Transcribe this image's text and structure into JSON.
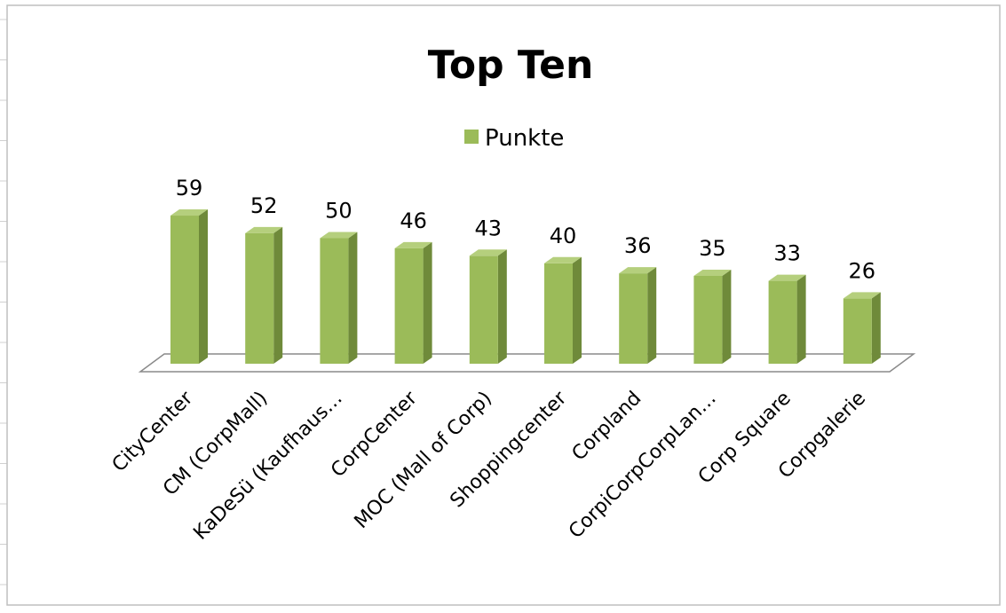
{
  "chart_data": {
    "type": "bar",
    "title": "Top Ten",
    "legend": {
      "position": "top",
      "entries": [
        {
          "name": "Punkte",
          "color": "#9bbb59"
        }
      ]
    },
    "categories": [
      "CityCenter",
      "CM (CorpMall)",
      "KaDeSü (Kaufhaus…",
      "CorpCenter",
      "MOC (Mall of Corp)",
      "Shoppingcenter",
      "Corpland",
      "CorpiCorpCorpLan…",
      "Corp Square",
      "Corpgalerie"
    ],
    "series": [
      {
        "name": "Punkte",
        "values": [
          59,
          52,
          50,
          46,
          43,
          40,
          36,
          35,
          33,
          26
        ]
      }
    ],
    "data_labels": true,
    "three_d": true,
    "grid": false,
    "colors": {
      "bar_front": "#9bbb59",
      "bar_side": "#6f8a3a",
      "bar_top": "#b5cf7d",
      "floor_stroke": "#8a8a8a",
      "border": "#bfbfbf"
    }
  }
}
